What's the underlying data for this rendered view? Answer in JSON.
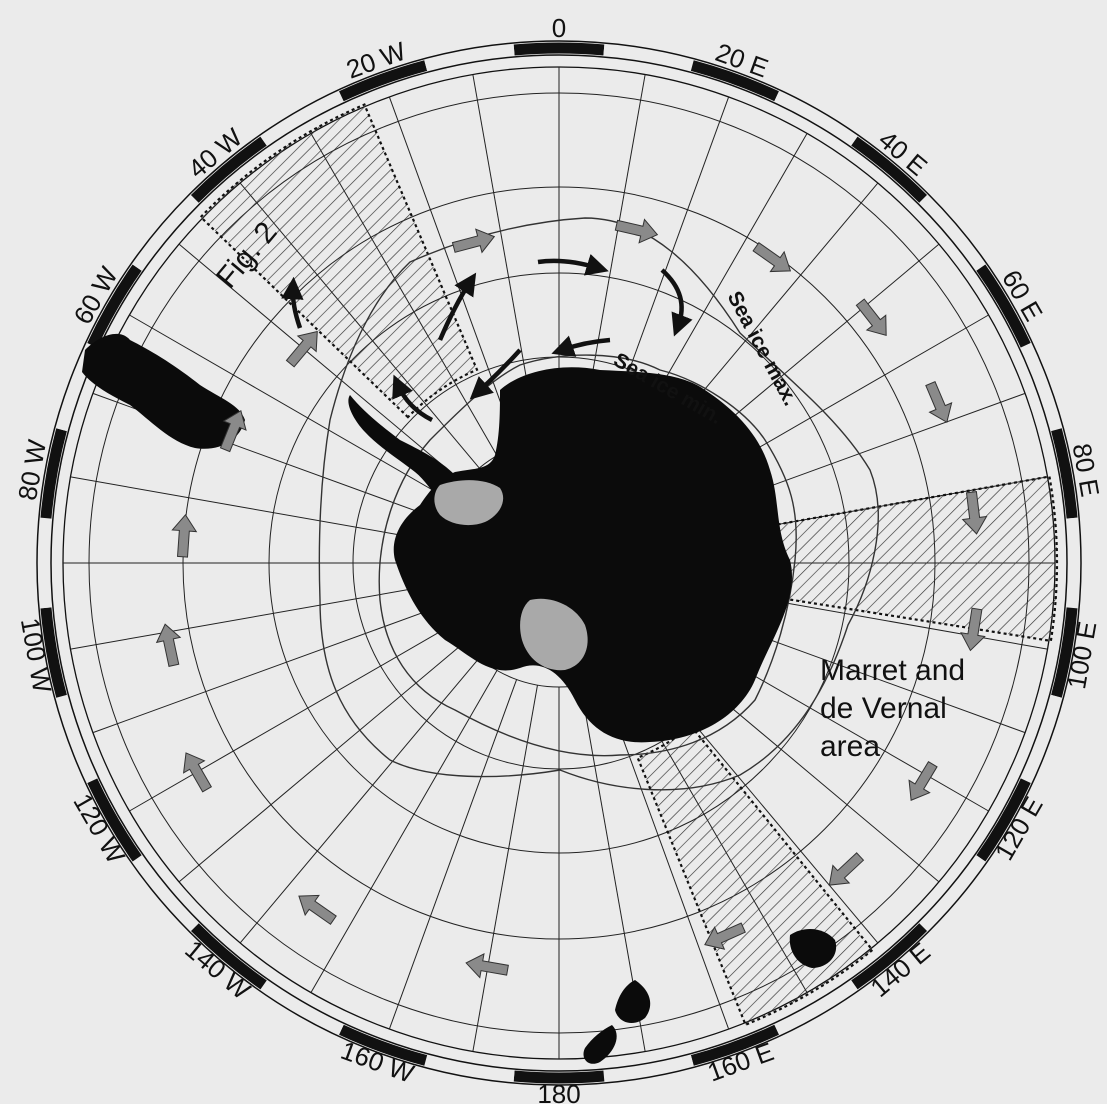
{
  "map": {
    "projection": "south-polar-stereographic",
    "colors": {
      "paper": "#ebebeb",
      "land": "#0b0b0b",
      "ice_shelf": "#a9a9a9",
      "current_arrow": "#8a8a8a",
      "gyre_arrow": "#111111",
      "graticule": "#222222"
    },
    "meridian_labels": [
      {
        "text": "0",
        "lon": 0
      },
      {
        "text": "20 E",
        "lon": 20
      },
      {
        "text": "40 E",
        "lon": 40
      },
      {
        "text": "60 E",
        "lon": 60
      },
      {
        "text": "80 E",
        "lon": 80
      },
      {
        "text": "100 E",
        "lon": 100
      },
      {
        "text": "120 E",
        "lon": 120
      },
      {
        "text": "140 E",
        "lon": 140
      },
      {
        "text": "160 E",
        "lon": 160
      },
      {
        "text": "180",
        "lon": 180
      },
      {
        "text": "160 W",
        "lon": -160
      },
      {
        "text": "140 W",
        "lon": -140
      },
      {
        "text": "120 W",
        "lon": -120
      },
      {
        "text": "100 W",
        "lon": -100
      },
      {
        "text": "80 W",
        "lon": -80
      },
      {
        "text": "60 W",
        "lon": -60
      },
      {
        "text": "40 W",
        "lon": -40
      },
      {
        "text": "20 W",
        "lon": -20
      }
    ],
    "labels": {
      "sea_ice_max": "Sea ice max.",
      "sea_ice_min": "Sea ice min.",
      "fig_ref": "Fig. 2",
      "study_area_line1": "Marret and",
      "study_area_line2": "de Vernal",
      "study_area_line3": "area"
    },
    "study_sectors": [
      {
        "name": "fig2-sector",
        "lon_from": -46,
        "lon_to": -23
      },
      {
        "name": "indian-sector",
        "lon_from": 80,
        "lon_to": 99
      },
      {
        "name": "tasmania-sector",
        "lon_from": 141,
        "lon_to": 158
      }
    ]
  }
}
